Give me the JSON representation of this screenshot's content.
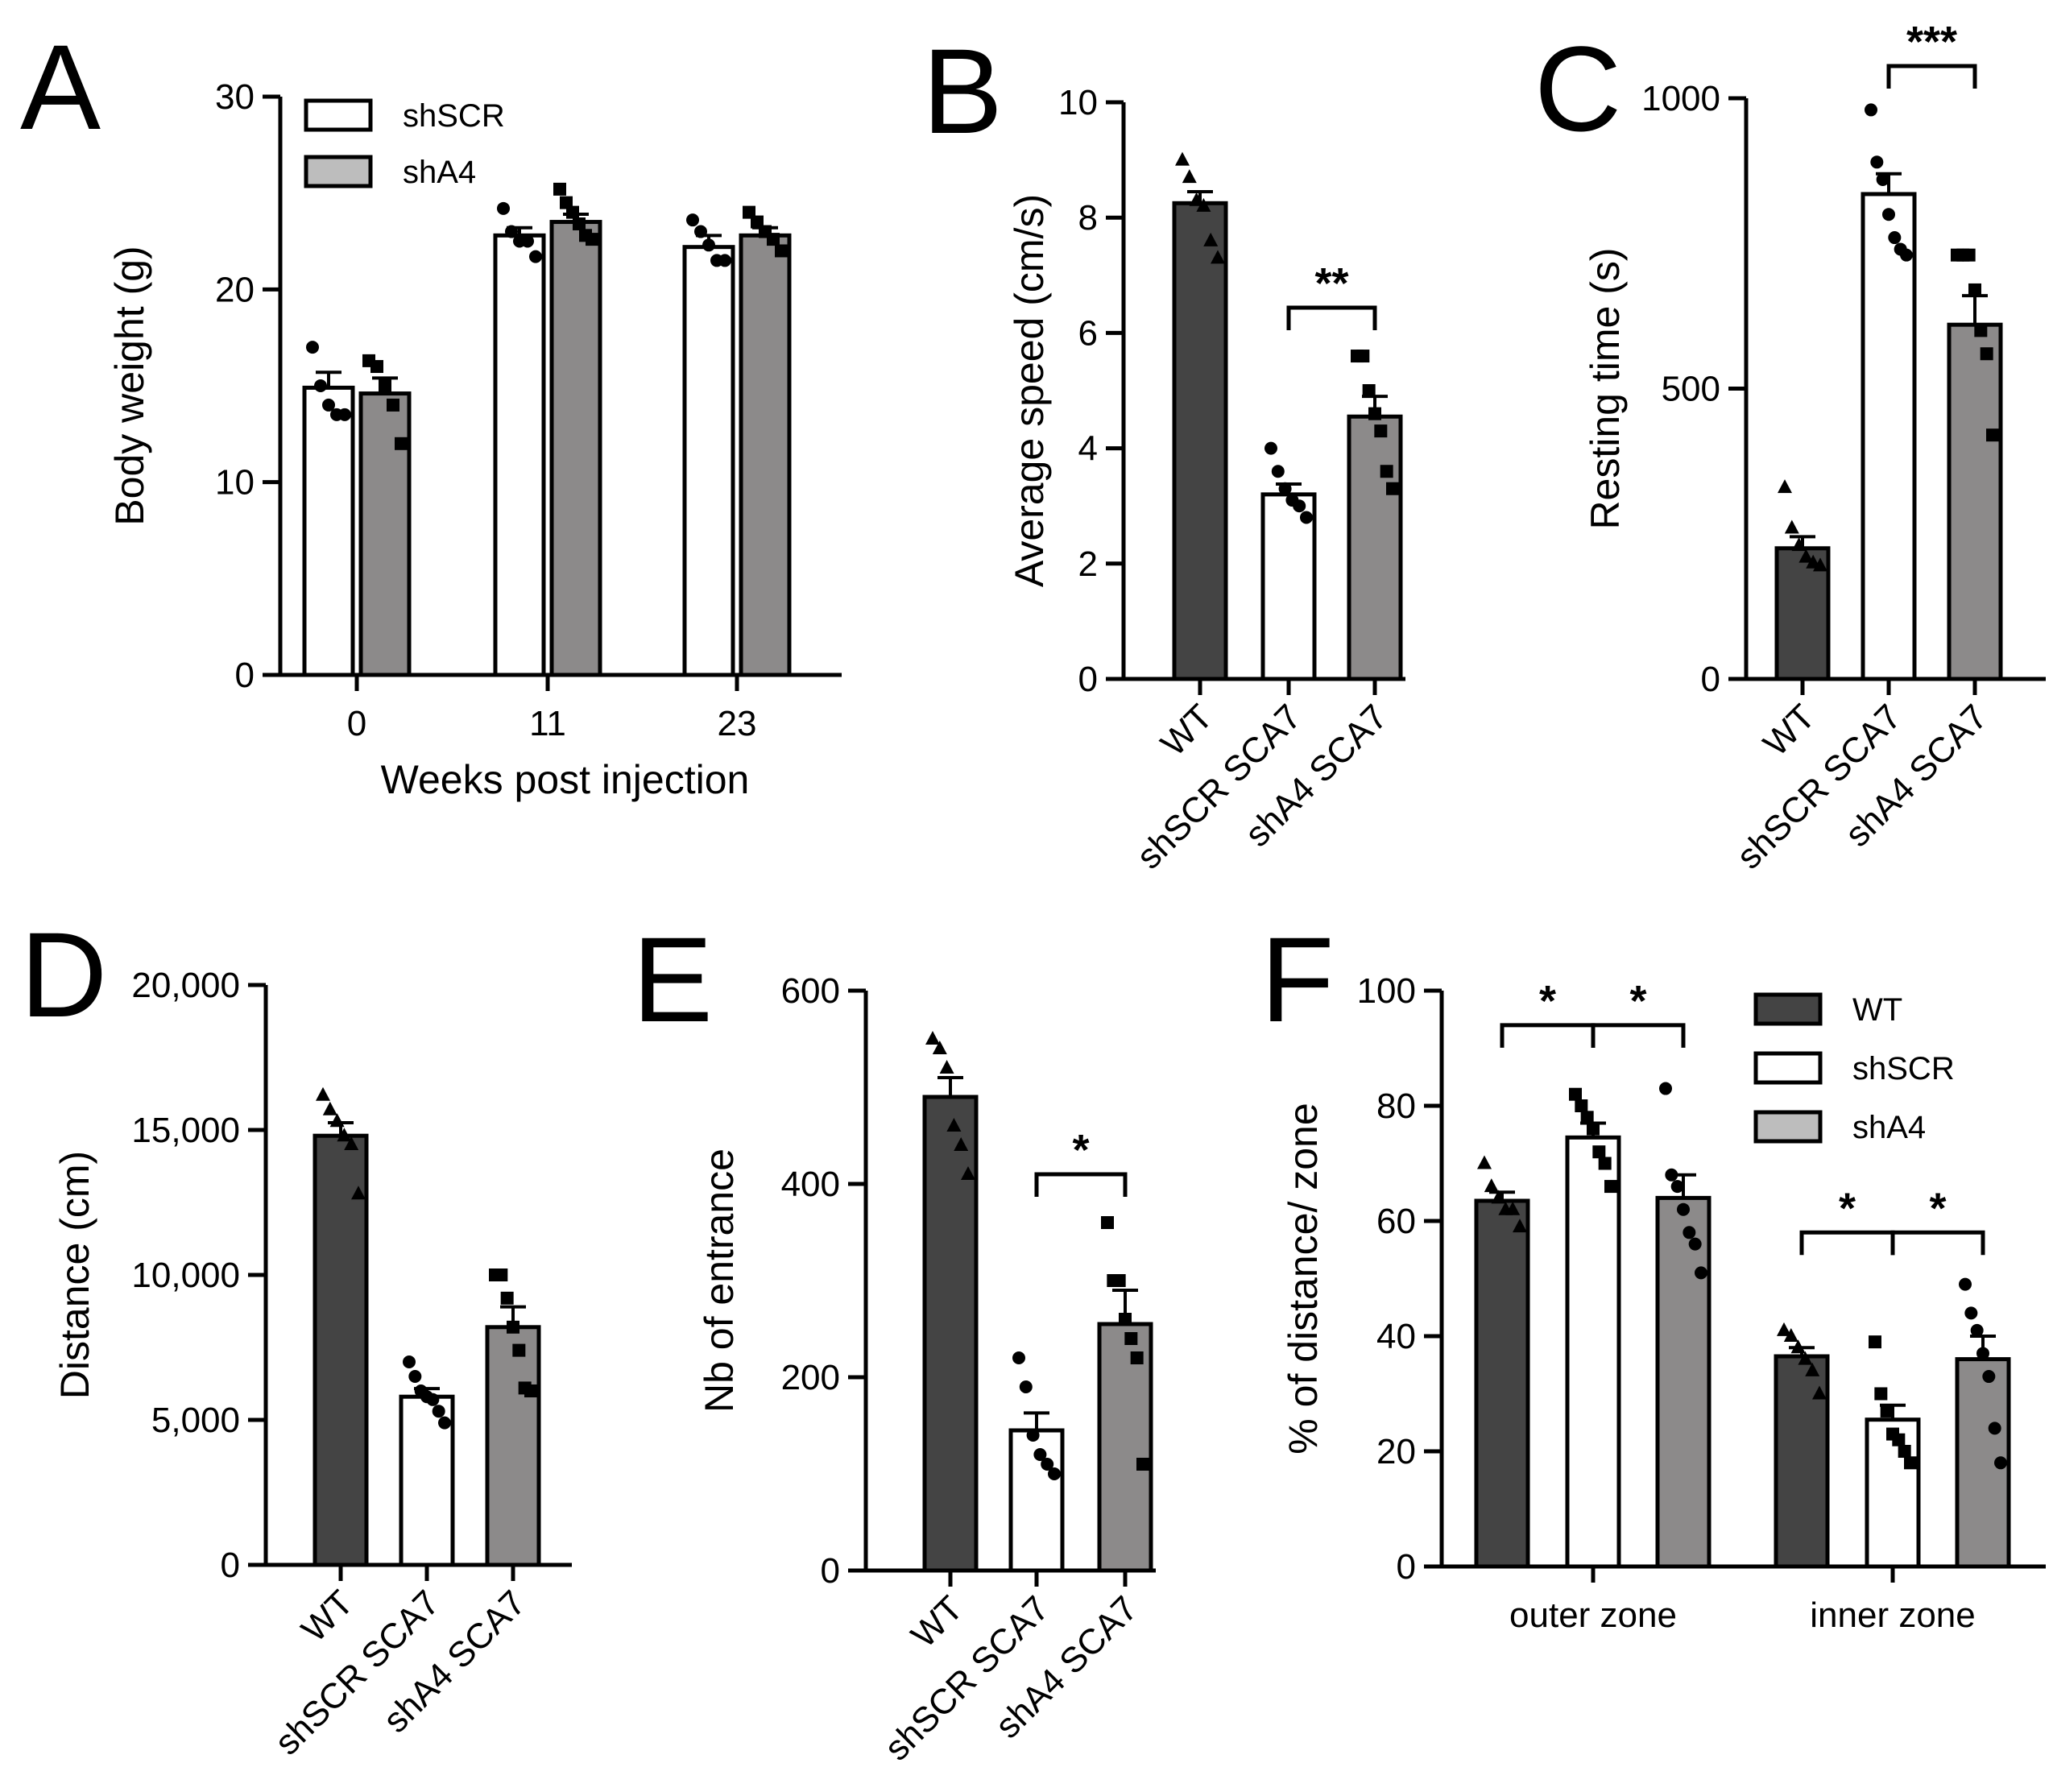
{
  "colors": {
    "WT": "#444444",
    "shSCR": "#ffffff",
    "shA4": "#8c8a8a",
    "shA4_legend": "#bdbdbd",
    "ink": "#000000"
  },
  "chart_data": [
    {
      "panel": "A",
      "type": "bar",
      "ylabel": "Body weight (g)",
      "xlabel": "Weeks post injection",
      "categories": [
        "0",
        "11",
        "23"
      ],
      "ylim": [
        0,
        30
      ],
      "yticks": [
        "0",
        "10",
        "20",
        "30"
      ],
      "legend": [
        "shSCR",
        "shA4"
      ],
      "series": [
        {
          "name": "shSCR",
          "values": [
            14.9,
            22.8,
            22.2
          ],
          "sem": [
            0.8,
            0.4,
            0.6
          ],
          "points": [
            [
              17,
              15,
              14,
              13.5,
              13.5
            ],
            [
              24.2,
              23,
              22.5,
              22.5,
              21.7
            ],
            [
              23.6,
              23,
              22.3,
              21.5,
              21.5
            ]
          ]
        },
        {
          "name": "shA4",
          "values": [
            14.6,
            23.5,
            22.8
          ],
          "sem": [
            0.8,
            0.4,
            0.4
          ],
          "points": [
            [
              16.3,
              16,
              15,
              14,
              12
            ],
            [
              25.2,
              24.5,
              24,
              23.4,
              22.8,
              22.6
            ],
            [
              24,
              23.5,
              23,
              22.6,
              22
            ]
          ]
        }
      ],
      "significance": []
    },
    {
      "panel": "B",
      "type": "bar",
      "ylabel": "Average speed (cm/s)",
      "categories": [
        "WT",
        "shSCR SCA7",
        "shA4 SCA7"
      ],
      "ylim": [
        0,
        10
      ],
      "yticks": [
        "0",
        "2",
        "4",
        "6",
        "8",
        "10"
      ],
      "values": [
        8.25,
        3.2,
        4.55
      ],
      "sem": [
        0.2,
        0.18,
        0.35
      ],
      "points": [
        [
          9,
          8.7,
          8.3,
          8.2,
          7.6,
          7.3
        ],
        [
          4,
          3.6,
          3.3,
          3.1,
          3.0,
          2.8
        ],
        [
          5.6,
          5.6,
          5.0,
          4.6,
          4.3,
          3.6,
          3.3
        ]
      ],
      "significance": [
        {
          "from": 1,
          "to": 2,
          "label": "**"
        }
      ]
    },
    {
      "panel": "C",
      "type": "bar",
      "ylabel": "Resting time (s)",
      "categories": [
        "WT",
        "shSCR SCA7",
        "shA4 SCA7"
      ],
      "ylim": [
        0,
        1000
      ],
      "yticks": [
        "0",
        "500",
        "1000"
      ],
      "values": [
        225,
        835,
        610
      ],
      "sem": [
        20,
        35,
        50
      ],
      "points": [
        [
          330,
          260,
          230,
          210,
          200,
          195
        ],
        [
          980,
          890,
          860,
          800,
          760,
          740,
          730
        ],
        [
          730,
          730,
          730,
          670,
          600,
          560,
          420
        ]
      ],
      "significance": [
        {
          "from": 1,
          "to": 2,
          "label": "***"
        }
      ]
    },
    {
      "panel": "D",
      "type": "bar",
      "ylabel": "Distance (cm)",
      "categories": [
        "WT",
        "shSCR SCA7",
        "shA4 SCA7"
      ],
      "ylim": [
        0,
        20000
      ],
      "yticks": [
        "0",
        "5,000",
        "10,000",
        "15,000",
        "20,000"
      ],
      "values": [
        14800,
        5800,
        8200
      ],
      "sem": [
        450,
        280,
        700
      ],
      "points": [
        [
          16200,
          15700,
          15300,
          14800,
          14500,
          12800
        ],
        [
          7000,
          6500,
          6000,
          5800,
          5700,
          5300,
          4900
        ],
        [
          10000,
          10000,
          9200,
          8200,
          7400,
          6100,
          6000
        ]
      ],
      "significance": []
    },
    {
      "panel": "E",
      "type": "bar",
      "ylabel": "Nb of entrance",
      "categories": [
        "WT",
        "shSCR SCA7",
        "shA4 SCA7"
      ],
      "ylim": [
        0,
        600
      ],
      "yticks": [
        "0",
        "200",
        "400",
        "600"
      ],
      "values": [
        490,
        145,
        255
      ],
      "sem": [
        20,
        18,
        35
      ],
      "points": [
        [
          550,
          540,
          520,
          460,
          440,
          410
        ],
        [
          220,
          190,
          140,
          120,
          110,
          100
        ],
        [
          360,
          300,
          300,
          260,
          240,
          220,
          110
        ]
      ],
      "significance": [
        {
          "from": 1,
          "to": 2,
          "label": "*"
        }
      ]
    },
    {
      "panel": "F",
      "type": "bar",
      "ylabel": "% of distance/ zone",
      "categories": [
        "outer zone",
        "inner zone"
      ],
      "ylim": [
        0,
        100
      ],
      "yticks": [
        "0",
        "20",
        "40",
        "60",
        "80",
        "100"
      ],
      "legend": [
        "WT",
        "shSCR",
        "shA4"
      ],
      "series": [
        {
          "name": "WT",
          "values": [
            63.5,
            36.5
          ],
          "sem": [
            1.5,
            1.5
          ],
          "points": [
            [
              70,
              66,
              64,
              62,
              62,
              59
            ],
            [
              41,
              40,
              38,
              36,
              34,
              30
            ]
          ]
        },
        {
          "name": "shSCR",
          "values": [
            74.5,
            25.5
          ],
          "sem": [
            2.5,
            2.5
          ],
          "points": [
            [
              82,
              80,
              78,
              76,
              72,
              70,
              66
            ],
            [
              39,
              30,
              27,
              23,
              22,
              20,
              18
            ]
          ]
        },
        {
          "name": "shA4",
          "values": [
            64,
            36
          ],
          "sem": [
            4,
            4
          ],
          "points": [
            [
              83,
              68,
              66,
              62,
              58,
              56,
              51
            ],
            [
              49,
              44,
              41,
              37,
              33,
              24,
              18
            ]
          ]
        }
      ],
      "significance": [
        {
          "group": 0,
          "from": 0,
          "to": 1,
          "label": "*"
        },
        {
          "group": 0,
          "from": 1,
          "to": 2,
          "label": "*"
        },
        {
          "group": 1,
          "from": 0,
          "to": 1,
          "label": "*"
        },
        {
          "group": 1,
          "from": 1,
          "to": 2,
          "label": "*"
        }
      ]
    }
  ]
}
